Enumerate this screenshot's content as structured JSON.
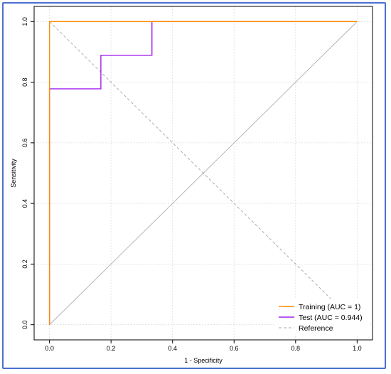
{
  "chart_data": {
    "type": "line",
    "title": "",
    "xlabel": "1 - Specificity",
    "ylabel": "Sensitivity",
    "xlim": [
      -0.05,
      1.05
    ],
    "ylim": [
      -0.05,
      1.05
    ],
    "x_ticks": [
      "0.0",
      "0.2",
      "0.4",
      "0.6",
      "0.8",
      "1.0"
    ],
    "y_ticks": [
      "0.0",
      "0.2",
      "0.4",
      "0.6",
      "0.8",
      "1.0"
    ],
    "grid": true,
    "legend_position": "bottom-right",
    "series": [
      {
        "name": "Training (AUC = 1)",
        "color": "#ff8c00",
        "style": "solid",
        "x": [
          0,
          0,
          1
        ],
        "y": [
          0,
          1,
          1
        ]
      },
      {
        "name": "Test (AUC = 0.944)",
        "color": "#a020f0",
        "style": "solid",
        "x": [
          0,
          0,
          0.167,
          0.167,
          0.333,
          0.333,
          1
        ],
        "y": [
          0,
          0.778,
          0.778,
          0.889,
          0.889,
          1,
          1
        ]
      },
      {
        "name": "Reference",
        "color": "#a6a6a6",
        "style": "dashed",
        "x": [
          0,
          1
        ],
        "y": [
          1,
          0
        ]
      }
    ],
    "extra_lines": [
      {
        "name": "diagonal",
        "color": "#a6a6a6",
        "style": "solid",
        "x": [
          0,
          1
        ],
        "y": [
          0,
          1
        ]
      }
    ]
  }
}
